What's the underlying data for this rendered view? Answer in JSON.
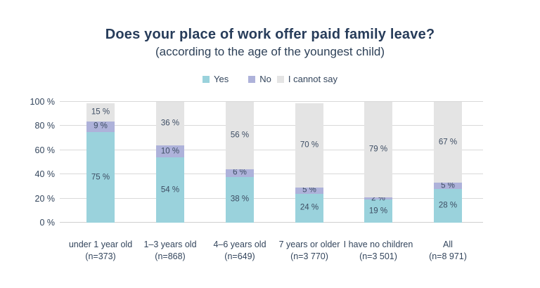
{
  "chart": {
    "title": "Does your place of work offer paid family leave?",
    "subtitle": "(according to the age of the youngest child)"
  },
  "colors": {
    "yes": "#9ad2dc",
    "no": "#aeb2da",
    "cannot_say": "#e4e4e4",
    "text_navy": "#2e4158",
    "gridline": "#d9d9d9"
  },
  "chart_data": {
    "type": "bar",
    "stacked": true,
    "orientation": "vertical",
    "title": "Does your place of work offer paid family leave?",
    "subtitle": "(according to the age of the youngest child)",
    "categories": [
      {
        "label": "under 1 year old",
        "n_label": "(n=373)"
      },
      {
        "label": "1–3 years old",
        "n_label": "(n=868)"
      },
      {
        "label": "4–6 years old",
        "n_label": "(n=649)"
      },
      {
        "label": "7 years or older",
        "n_label": "(n=3 770)"
      },
      {
        "label": "I have no children",
        "n_label": "(n=3 501)"
      },
      {
        "label": "All",
        "n_label": "(n=8 971)"
      }
    ],
    "series": [
      {
        "name": "Yes",
        "color": "#9ad2dc",
        "values": [
          75,
          54,
          38,
          24,
          19,
          28
        ]
      },
      {
        "name": "No",
        "color": "#aeb2da",
        "values": [
          9,
          10,
          6,
          5,
          2,
          5
        ]
      },
      {
        "name": "I cannot say",
        "color": "#e4e4e4",
        "values": [
          15,
          36,
          56,
          70,
          79,
          67
        ]
      }
    ],
    "value_suffix": " %",
    "ylim": [
      0,
      100
    ],
    "yticks": [
      {
        "value": 0,
        "label": "0 %"
      },
      {
        "value": 20,
        "label": "20 %"
      },
      {
        "value": 40,
        "label": "40 %"
      },
      {
        "value": 60,
        "label": "60 %"
      },
      {
        "value": 80,
        "label": "80 %"
      },
      {
        "value": 100,
        "label": "100 %"
      }
    ],
    "grid": true,
    "legend_position": "top-center"
  }
}
